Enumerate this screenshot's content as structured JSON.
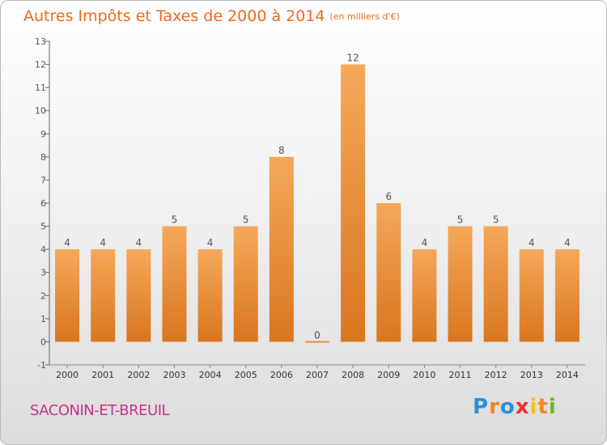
{
  "header": {
    "title": "Autres Impôts et Taxes de 2000 à 2014",
    "subtitle": "(en milliers d'€)"
  },
  "footer": {
    "place": "SACONIN-ET-BREUIL",
    "logo_letters": [
      "P",
      "r",
      "o",
      "x",
      "i",
      "t",
      "i"
    ]
  },
  "colors": {
    "title": "#ee6a1c",
    "place": "#c7338e",
    "bar_light": "#f5a85a",
    "bar_dark": "#d9761f",
    "logo": [
      "#2a8fd8",
      "#f08a1c",
      "#2a8fd8",
      "#e8332b",
      "#f0c419",
      "#f08a1c",
      "#6fb826"
    ]
  },
  "chart_data": {
    "type": "bar",
    "categories": [
      "2000",
      "2001",
      "2002",
      "2003",
      "2004",
      "2005",
      "2006",
      "2007",
      "2008",
      "2009",
      "2010",
      "2011",
      "2012",
      "2013",
      "2014"
    ],
    "values": [
      4,
      4,
      4,
      5,
      4,
      5,
      8,
      0,
      12,
      6,
      4,
      5,
      5,
      4,
      4
    ],
    "yticks": [
      -1,
      0,
      1,
      2,
      3,
      4,
      5,
      6,
      7,
      8,
      9,
      10,
      11,
      12,
      13
    ],
    "ylim": [
      -1,
      13
    ],
    "grid": false,
    "legend": "none"
  }
}
